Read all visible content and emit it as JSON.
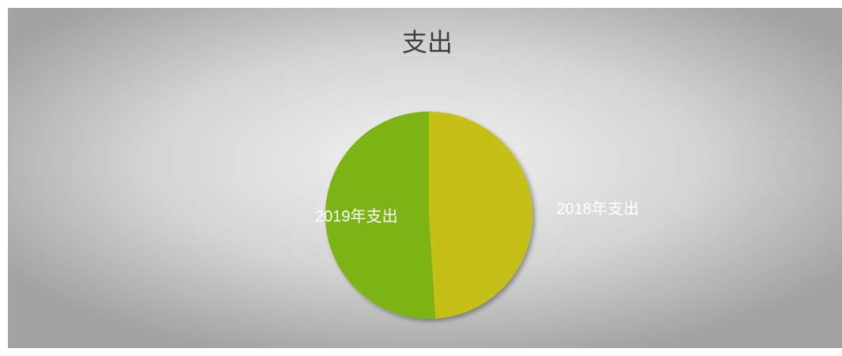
{
  "chart_data": {
    "type": "pie",
    "title": "支出",
    "categories": [
      "2018年支出",
      "2019年支出"
    ],
    "values": [
      49,
      51
    ],
    "colors": [
      "#c5c015",
      "#7bb412"
    ]
  }
}
